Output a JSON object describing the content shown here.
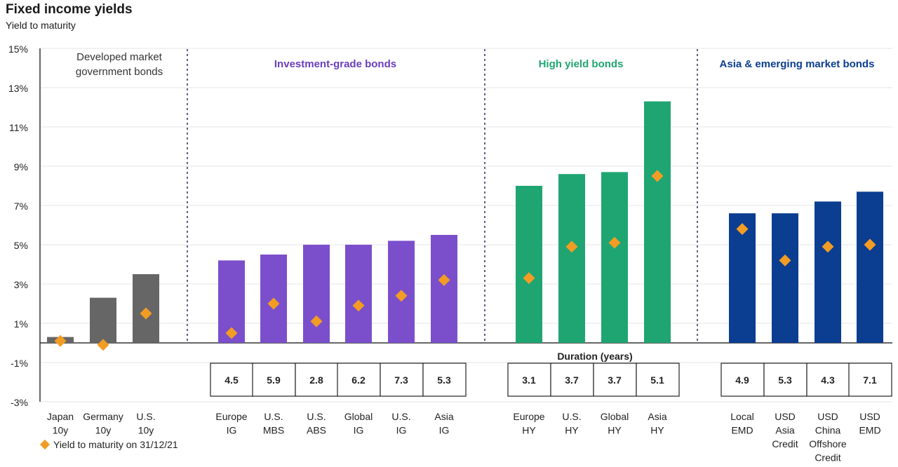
{
  "chart_data": {
    "type": "bar",
    "title": "Fixed income yields",
    "subtitle": "Yield to maturity",
    "ylim": [
      -3,
      15
    ],
    "yticks": [
      "15%",
      "13%",
      "11%",
      "9%",
      "7%",
      "5%",
      "3%",
      "1%",
      "-1%",
      "-3%"
    ],
    "ytick_values": [
      15,
      13,
      11,
      9,
      7,
      5,
      3,
      1,
      -1,
      -3
    ],
    "grid": true,
    "duration_label": "Duration (years)",
    "legend": {
      "label": "Yield to maturity on 31/12/21",
      "placement": "bottom-left",
      "marker": "diamond"
    },
    "colors": {
      "diamond": "#f39c23",
      "dm": "#666666",
      "ig": "#7b4fcb",
      "hy": "#1fa572",
      "em": "#0b3d91"
    },
    "groups": [
      {
        "name": "Developed market government bonds",
        "color_key": "dm",
        "label_color": "#333333",
        "categories": [
          "Japan 10y",
          "Germany 10y",
          "U.S. 10y"
        ],
        "current": [
          0.3,
          2.3,
          3.5
        ],
        "yield_31_12_21": [
          0.1,
          -0.1,
          1.5
        ],
        "duration": null
      },
      {
        "name": "Investment-grade bonds",
        "color_key": "ig",
        "label_color": "#6a3dbd",
        "categories": [
          "Europe IG",
          "U.S. MBS",
          "U.S. ABS",
          "Global IG",
          "U.S. IG",
          "Asia IG"
        ],
        "current": [
          4.2,
          4.5,
          5.0,
          5.0,
          5.2,
          5.5
        ],
        "yield_31_12_21": [
          0.5,
          2.0,
          1.1,
          1.9,
          2.4,
          3.2
        ],
        "duration": [
          "4.5",
          "5.9",
          "2.8",
          "6.2",
          "7.3",
          "5.3"
        ]
      },
      {
        "name": "High yield bonds",
        "color_key": "hy",
        "label_color": "#1fa572",
        "categories": [
          "Europe HY",
          "U.S. HY",
          "Global HY",
          "Asia HY"
        ],
        "current": [
          8.0,
          8.6,
          8.7,
          12.3
        ],
        "yield_31_12_21": [
          3.3,
          4.9,
          5.1,
          8.5
        ],
        "duration": [
          "3.1",
          "3.7",
          "3.7",
          "5.1"
        ]
      },
      {
        "name": "Asia & emerging market bonds",
        "color_key": "em",
        "label_color": "#0b3d91",
        "categories": [
          "Local EMD",
          "USD Asia Credit",
          "USD China Offshore Credit",
          "USD EMD"
        ],
        "current": [
          6.6,
          6.6,
          7.2,
          7.7
        ],
        "yield_31_12_21": [
          5.8,
          4.2,
          4.9,
          5.0
        ],
        "duration": [
          "4.9",
          "5.3",
          "4.3",
          "7.1"
        ]
      }
    ],
    "category_lines": {
      "Japan 10y": [
        "Japan",
        "10y"
      ],
      "Germany 10y": [
        "Germany",
        "10y"
      ],
      "U.S. 10y": [
        "U.S.",
        "10y"
      ],
      "Europe IG": [
        "Europe",
        "IG"
      ],
      "U.S. MBS": [
        "U.S.",
        "MBS"
      ],
      "U.S. ABS": [
        "U.S.",
        "ABS"
      ],
      "Global IG": [
        "Global",
        "IG"
      ],
      "U.S. IG": [
        "U.S.",
        "IG"
      ],
      "Asia IG": [
        "Asia",
        "IG"
      ],
      "Europe HY": [
        "Europe",
        "HY"
      ],
      "U.S. HY": [
        "U.S.",
        "HY"
      ],
      "Global HY": [
        "Global",
        "HY"
      ],
      "Asia HY": [
        "Asia",
        "HY"
      ],
      "Local EMD": [
        "Local",
        "EMD"
      ],
      "USD Asia Credit": [
        "USD",
        "Asia",
        "Credit"
      ],
      "USD China Offshore Credit": [
        "USD",
        "China",
        "Offshore",
        "Credit"
      ],
      "USD EMD": [
        "USD",
        "EMD"
      ]
    },
    "group_title_lines": {
      "Developed market government bonds": [
        "Developed market",
        "government bonds"
      ]
    }
  }
}
